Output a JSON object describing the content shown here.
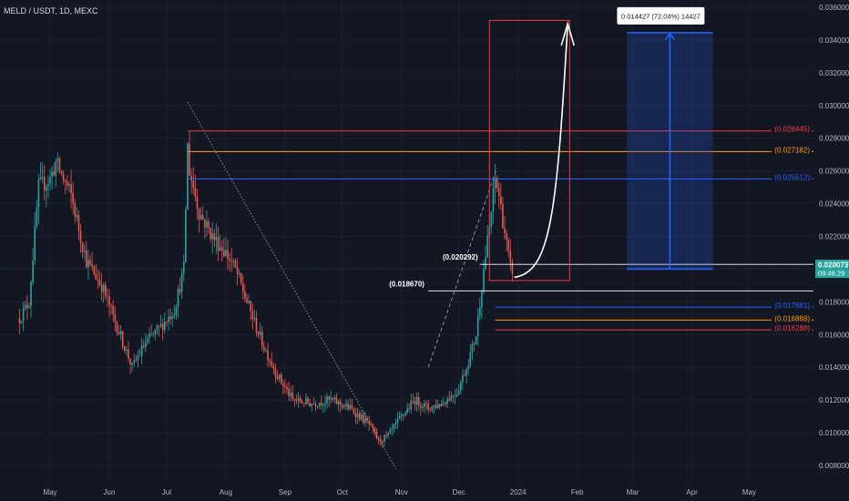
{
  "header": {
    "symbol": "MELD / USDT, 1D, MEXC"
  },
  "colors": {
    "background": "#131722",
    "grid": "#1c2030",
    "axis_text": "#b2b5be",
    "up": "#26a69a",
    "down": "#ef5350",
    "red_level": "#f23645",
    "orange_level": "#ff9800",
    "blue_level": "#2962ff",
    "white": "#ffffff",
    "last_price_bg": "#26a69a"
  },
  "chart_data": {
    "type": "candlestick",
    "y_axis": {
      "ticks": [
        "0.036000",
        "0.034000",
        "0.032000",
        "0.030000",
        "0.028000",
        "0.026000",
        "0.024000",
        "0.022000",
        "0.020000",
        "0.018000",
        "0.016000",
        "0.014000",
        "0.012000",
        "0.010000",
        "0.008000"
      ],
      "range": [
        0.0072,
        0.0365
      ]
    },
    "x_axis": {
      "ticks": [
        "May",
        "Jun",
        "Jul",
        "Aug",
        "Sep",
        "Oct",
        "Nov",
        "Dec",
        "2024",
        "Feb",
        "Mar",
        "Apr",
        "May"
      ]
    },
    "path": [
      [
        "2023-04-15",
        0.017
      ],
      [
        "2023-04-20",
        0.018
      ],
      [
        "2023-04-25",
        0.025
      ],
      [
        "2023-05-01",
        0.0255
      ],
      [
        "2023-05-04",
        0.0265
      ],
      [
        "2023-05-12",
        0.0245
      ],
      [
        "2023-05-20",
        0.0205
      ],
      [
        "2023-05-28",
        0.019
      ],
      [
        "2023-06-05",
        0.0165
      ],
      [
        "2023-06-13",
        0.014
      ],
      [
        "2023-06-20",
        0.0155
      ],
      [
        "2023-06-28",
        0.0165
      ],
      [
        "2023-07-05",
        0.0175
      ],
      [
        "2023-07-10",
        0.02
      ],
      [
        "2023-07-12",
        0.0275
      ],
      [
        "2023-07-13",
        0.026
      ],
      [
        "2023-07-18",
        0.0235
      ],
      [
        "2023-07-25",
        0.022
      ],
      [
        "2023-08-01",
        0.021
      ],
      [
        "2023-08-06",
        0.02
      ],
      [
        "2023-08-12",
        0.018
      ],
      [
        "2023-08-20",
        0.0155
      ],
      [
        "2023-08-28",
        0.0135
      ],
      [
        "2023-09-05",
        0.012
      ],
      [
        "2023-09-15",
        0.0118
      ],
      [
        "2023-09-25",
        0.012
      ],
      [
        "2023-10-05",
        0.0115
      ],
      [
        "2023-10-15",
        0.0105
      ],
      [
        "2023-10-20",
        0.0095
      ],
      [
        "2023-10-25",
        0.0098
      ],
      [
        "2023-11-01",
        0.011
      ],
      [
        "2023-11-08",
        0.012
      ],
      [
        "2023-11-15",
        0.0115
      ],
      [
        "2023-11-22",
        0.0118
      ],
      [
        "2023-11-30",
        0.0125
      ],
      [
        "2023-12-05",
        0.014
      ],
      [
        "2023-12-10",
        0.016
      ],
      [
        "2023-12-14",
        0.02
      ],
      [
        "2023-12-17",
        0.0225
      ],
      [
        "2023-12-20",
        0.0255
      ],
      [
        "2023-12-22",
        0.0245
      ],
      [
        "2023-12-24",
        0.023
      ],
      [
        "2023-12-26",
        0.0215
      ],
      [
        "2023-12-28",
        0.02
      ],
      [
        "2023-12-29",
        0.02
      ]
    ],
    "annotations": {
      "price_labels": [
        {
          "text": "(0.028445)",
          "color": "red",
          "value": 0.028445
        },
        {
          "text": "(0.027182)",
          "color": "orange",
          "value": 0.027182
        },
        {
          "text": "(0.025512)",
          "color": "blue",
          "value": 0.025512
        },
        {
          "text": "(0.017681)",
          "color": "blue",
          "value": 0.017681
        },
        {
          "text": "(0.016888)",
          "color": "orange",
          "value": 0.016888
        },
        {
          "text": "(0.016288)",
          "color": "red",
          "value": 0.016288
        }
      ],
      "white_levels": [
        {
          "text": "(0.020292)",
          "value": 0.020292
        },
        {
          "text": "(0.018670)",
          "value": 0.01867
        }
      ],
      "last_price": {
        "value": 0.020073,
        "text": "0.020073",
        "countdown": "09:46:29"
      },
      "projection_label": "0.014427 (72.04%) 14427",
      "projection_from": 0.02,
      "projection_to": 0.03445,
      "red_box": {
        "from": "2023-12-17",
        "to": "2024-01-28",
        "low": 0.0193,
        "high": 0.0352
      },
      "blue_box": {
        "from": "2024-02-27",
        "to": "2024-04-12",
        "low": 0.02,
        "high": 0.03445
      },
      "dotted_trend": {
        "from": [
          "2023-07-12",
          0.0302
        ],
        "to": [
          "2023-10-29",
          0.0078
        ]
      },
      "dashed_trend": {
        "from": [
          "2023-11-15",
          0.014
        ],
        "to": [
          "2023-12-21",
          0.0262
        ]
      }
    }
  }
}
